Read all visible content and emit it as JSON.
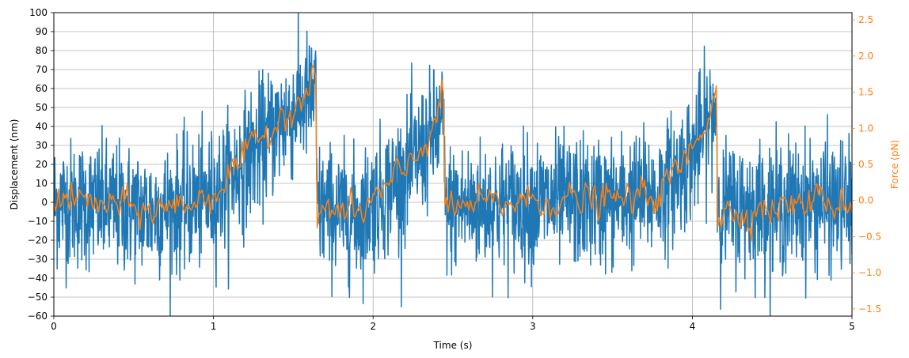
{
  "chart_data": {
    "type": "line",
    "title": "",
    "xlabel": "Time (s)",
    "ylabel": "Displacement (nm)",
    "y2label": "Force (pN)",
    "xlim": [
      0,
      5
    ],
    "ylim": [
      -60,
      100
    ],
    "y2lim": [
      -1.6,
      2.6
    ],
    "grid": true,
    "x_ticks": [
      0,
      1,
      2,
      3,
      4,
      5
    ],
    "x_tick_labels": [
      "0",
      "1",
      "2",
      "3",
      "4",
      "5"
    ],
    "y_ticks": [
      -60,
      -50,
      -40,
      -30,
      -20,
      -10,
      0,
      10,
      20,
      30,
      40,
      50,
      60,
      70,
      80,
      90,
      100
    ],
    "y_tick_labels": [
      "−60",
      "−50",
      "−40",
      "−30",
      "−20",
      "−10",
      "0",
      "10",
      "20",
      "30",
      "40",
      "50",
      "60",
      "70",
      "80",
      "90",
      "100"
    ],
    "y2_ticks": [
      -1.5,
      -1.0,
      -0.5,
      0.0,
      0.5,
      1.0,
      1.5,
      2.0,
      2.5
    ],
    "y2_tick_labels": [
      "−1.5",
      "−1.0",
      "−0.5",
      "0.0",
      "0.5",
      "1.0",
      "1.5",
      "2.0",
      "2.5"
    ],
    "colors": {
      "displacement": "#1f77b4",
      "force": "#ff7f0e",
      "grid": "#b0b0b0"
    },
    "series": [
      {
        "axis": "left",
        "color": "#1f77b4",
        "noise_sd": 17,
        "x": [
          0,
          0.3,
          0.6,
          0.9,
          1.0,
          1.2,
          1.4,
          1.55,
          1.64,
          1.65,
          1.66,
          1.9,
          2.0,
          2.2,
          2.35,
          2.44,
          2.45,
          2.46,
          3.0,
          3.5,
          3.8,
          4.0,
          4.1,
          4.15,
          4.16,
          4.17,
          4.5,
          4.8,
          5.0
        ],
        "values": [
          0,
          -2,
          -5,
          0,
          3,
          22,
          40,
          52,
          58,
          -2,
          -3,
          -8,
          0,
          15,
          32,
          42,
          0,
          -3,
          0,
          0,
          5,
          25,
          42,
          50,
          0,
          -3,
          -2,
          0,
          -2
        ]
      },
      {
        "axis": "right",
        "color": "#ff7f0e",
        "noise_sd": 0.18,
        "x": [
          0,
          0.3,
          0.6,
          0.9,
          1.0,
          1.2,
          1.4,
          1.55,
          1.64,
          1.65,
          1.66,
          1.9,
          2.0,
          2.2,
          2.35,
          2.44,
          2.45,
          2.46,
          3.0,
          3.5,
          3.8,
          4.0,
          4.1,
          4.15,
          4.16,
          4.17,
          4.5,
          4.8,
          5.0
        ],
        "values": [
          0.05,
          -0.05,
          -0.15,
          0.0,
          0.1,
          0.6,
          1.1,
          1.45,
          1.6,
          -0.15,
          -0.1,
          -0.2,
          0.0,
          0.4,
          0.9,
          1.4,
          -0.05,
          -0.1,
          0.0,
          0.0,
          0.1,
          0.7,
          1.2,
          1.65,
          -0.3,
          -0.2,
          -0.1,
          0.0,
          -0.05
        ]
      }
    ]
  }
}
